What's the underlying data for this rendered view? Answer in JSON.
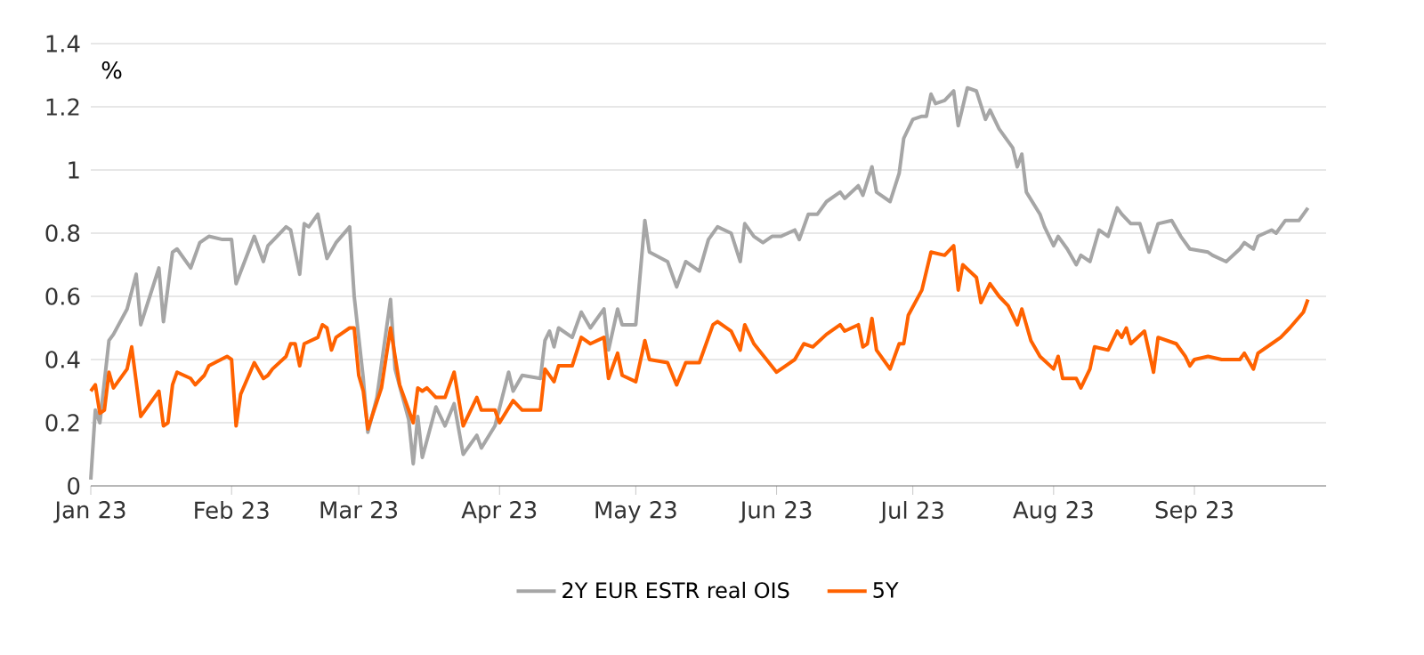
{
  "chart_data": {
    "type": "line",
    "ylabel": "%",
    "ylim": [
      0,
      1.4
    ],
    "yticks": [
      0,
      0.2,
      0.4,
      0.6,
      0.8,
      1,
      1.2,
      1.4
    ],
    "xlim": [
      "2023-01-01",
      "2023-09-30"
    ],
    "xticks": [
      {
        "value": "2023-01-01",
        "label": "Jan 23"
      },
      {
        "value": "2023-02-01",
        "label": "Feb 23"
      },
      {
        "value": "2023-03-01",
        "label": "Mar 23"
      },
      {
        "value": "2023-04-01",
        "label": "Apr 23"
      },
      {
        "value": "2023-05-01",
        "label": "May 23"
      },
      {
        "value": "2023-06-01",
        "label": "Jun 23"
      },
      {
        "value": "2023-07-01",
        "label": "Jul 23"
      },
      {
        "value": "2023-08-01",
        "label": "Aug 23"
      },
      {
        "value": "2023-09-01",
        "label": "Sep 23"
      }
    ],
    "grid": "y",
    "legend": "bottom",
    "marker": "none",
    "line_style": "solid",
    "series": [
      {
        "name": "2Y EUR ESTR real OIS",
        "color": "#a6a6a6",
        "x": [
          "2023-01-01",
          "2023-01-02",
          "2023-01-03",
          "2023-01-05",
          "2023-01-06",
          "2023-01-09",
          "2023-01-11",
          "2023-01-12",
          "2023-01-16",
          "2023-01-17",
          "2023-01-19",
          "2023-01-20",
          "2023-01-23",
          "2023-01-25",
          "2023-01-27",
          "2023-01-30",
          "2023-02-01",
          "2023-02-02",
          "2023-02-06",
          "2023-02-08",
          "2023-02-09",
          "2023-02-11",
          "2023-02-13",
          "2023-02-14",
          "2023-02-16",
          "2023-02-17",
          "2023-02-18",
          "2023-02-20",
          "2023-02-22",
          "2023-02-24",
          "2023-02-27",
          "2023-02-28",
          "2023-03-02",
          "2023-03-03",
          "2023-03-05",
          "2023-03-08",
          "2023-03-09",
          "2023-03-12",
          "2023-03-13",
          "2023-03-14",
          "2023-03-15",
          "2023-03-18",
          "2023-03-20",
          "2023-03-22",
          "2023-03-24",
          "2023-03-27",
          "2023-03-28",
          "2023-03-31",
          "2023-04-03",
          "2023-04-04",
          "2023-04-06",
          "2023-04-10",
          "2023-04-11",
          "2023-04-12",
          "2023-04-13",
          "2023-04-14",
          "2023-04-17",
          "2023-04-19",
          "2023-04-21",
          "2023-04-24",
          "2023-04-25",
          "2023-04-27",
          "2023-04-28",
          "2023-05-01",
          "2023-05-03",
          "2023-05-04",
          "2023-05-08",
          "2023-05-10",
          "2023-05-12",
          "2023-05-15",
          "2023-05-17",
          "2023-05-19",
          "2023-05-22",
          "2023-05-24",
          "2023-05-25",
          "2023-05-27",
          "2023-05-29",
          "2023-05-31",
          "2023-06-02",
          "2023-06-05",
          "2023-06-06",
          "2023-06-08",
          "2023-06-10",
          "2023-06-12",
          "2023-06-14",
          "2023-06-15",
          "2023-06-16",
          "2023-06-19",
          "2023-06-20",
          "2023-06-22",
          "2023-06-23",
          "2023-06-26",
          "2023-06-28",
          "2023-06-29",
          "2023-07-01",
          "2023-07-03",
          "2023-07-04",
          "2023-07-05",
          "2023-07-06",
          "2023-07-08",
          "2023-07-10",
          "2023-07-11",
          "2023-07-13",
          "2023-07-15",
          "2023-07-17",
          "2023-07-18",
          "2023-07-20",
          "2023-07-23",
          "2023-07-24",
          "2023-07-25",
          "2023-07-26",
          "2023-07-29",
          "2023-07-30",
          "2023-08-01",
          "2023-08-02",
          "2023-08-04",
          "2023-08-06",
          "2023-08-07",
          "2023-08-09",
          "2023-08-11",
          "2023-08-13",
          "2023-08-15",
          "2023-08-16",
          "2023-08-18",
          "2023-08-20",
          "2023-08-22",
          "2023-08-24",
          "2023-08-27",
          "2023-08-29",
          "2023-08-31",
          "2023-09-04",
          "2023-09-05",
          "2023-09-08",
          "2023-09-11",
          "2023-09-12",
          "2023-09-14",
          "2023-09-15",
          "2023-09-18",
          "2023-09-19",
          "2023-09-21",
          "2023-09-24",
          "2023-09-26"
        ],
        "values": [
          0.02,
          0.24,
          0.2,
          0.46,
          0.48,
          0.56,
          0.67,
          0.51,
          0.69,
          0.52,
          0.74,
          0.75,
          0.69,
          0.77,
          0.79,
          0.78,
          0.78,
          0.64,
          0.79,
          0.71,
          0.76,
          0.79,
          0.82,
          0.81,
          0.67,
          0.83,
          0.82,
          0.86,
          0.72,
          0.77,
          0.82,
          0.6,
          0.34,
          0.17,
          0.28,
          0.59,
          0.37,
          0.21,
          0.07,
          0.22,
          0.09,
          0.25,
          0.19,
          0.26,
          0.1,
          0.16,
          0.12,
          0.19,
          0.36,
          0.3,
          0.35,
          0.34,
          0.46,
          0.49,
          0.44,
          0.5,
          0.47,
          0.55,
          0.5,
          0.56,
          0.43,
          0.56,
          0.51,
          0.51,
          0.84,
          0.74,
          0.71,
          0.63,
          0.71,
          0.68,
          0.78,
          0.82,
          0.8,
          0.71,
          0.83,
          0.79,
          0.77,
          0.79,
          0.79,
          0.81,
          0.78,
          0.86,
          0.86,
          0.9,
          0.92,
          0.93,
          0.91,
          0.95,
          0.92,
          1.01,
          0.93,
          0.9,
          0.99,
          1.1,
          1.16,
          1.17,
          1.17,
          1.24,
          1.21,
          1.22,
          1.25,
          1.14,
          1.26,
          1.25,
          1.16,
          1.19,
          1.13,
          1.07,
          1.01,
          1.05,
          0.93,
          0.86,
          0.82,
          0.76,
          0.79,
          0.75,
          0.7,
          0.73,
          0.71,
          0.81,
          0.79,
          0.88,
          0.86,
          0.83,
          0.83,
          0.74,
          0.83,
          0.84,
          0.79,
          0.75,
          0.74,
          0.73,
          0.71,
          0.75,
          0.77,
          0.75,
          0.79,
          0.81,
          0.8,
          0.84,
          0.84,
          0.88
        ]
      },
      {
        "name": "5Y",
        "color": "#ff6200",
        "x": [
          "2023-01-01",
          "2023-01-02",
          "2023-01-03",
          "2023-01-04",
          "2023-01-05",
          "2023-01-06",
          "2023-01-09",
          "2023-01-10",
          "2023-01-12",
          "2023-01-16",
          "2023-01-17",
          "2023-01-18",
          "2023-01-19",
          "2023-01-20",
          "2023-01-23",
          "2023-01-24",
          "2023-01-26",
          "2023-01-27",
          "2023-01-31",
          "2023-02-01",
          "2023-02-02",
          "2023-02-03",
          "2023-02-06",
          "2023-02-08",
          "2023-02-09",
          "2023-02-10",
          "2023-02-13",
          "2023-02-14",
          "2023-02-15",
          "2023-02-16",
          "2023-02-17",
          "2023-02-20",
          "2023-02-21",
          "2023-02-22",
          "2023-02-23",
          "2023-02-24",
          "2023-02-27",
          "2023-02-28",
          "2023-03-01",
          "2023-03-02",
          "2023-03-03",
          "2023-03-06",
          "2023-03-08",
          "2023-03-10",
          "2023-03-13",
          "2023-03-14",
          "2023-03-15",
          "2023-03-16",
          "2023-03-18",
          "2023-03-20",
          "2023-03-22",
          "2023-03-24",
          "2023-03-27",
          "2023-03-28",
          "2023-03-31",
          "2023-04-01",
          "2023-04-04",
          "2023-04-06",
          "2023-04-10",
          "2023-04-11",
          "2023-04-13",
          "2023-04-14",
          "2023-04-17",
          "2023-04-19",
          "2023-04-21",
          "2023-04-24",
          "2023-04-25",
          "2023-04-27",
          "2023-04-28",
          "2023-05-01",
          "2023-05-03",
          "2023-05-04",
          "2023-05-08",
          "2023-05-10",
          "2023-05-12",
          "2023-05-15",
          "2023-05-18",
          "2023-05-19",
          "2023-05-22",
          "2023-05-24",
          "2023-05-25",
          "2023-05-27",
          "2023-06-01",
          "2023-06-03",
          "2023-06-05",
          "2023-06-07",
          "2023-06-09",
          "2023-06-12",
          "2023-06-15",
          "2023-06-16",
          "2023-06-19",
          "2023-06-20",
          "2023-06-21",
          "2023-06-22",
          "2023-06-23",
          "2023-06-26",
          "2023-06-28",
          "2023-06-29",
          "2023-06-30",
          "2023-07-03",
          "2023-07-05",
          "2023-07-08",
          "2023-07-10",
          "2023-07-11",
          "2023-07-12",
          "2023-07-15",
          "2023-07-16",
          "2023-07-18",
          "2023-07-20",
          "2023-07-22",
          "2023-07-24",
          "2023-07-25",
          "2023-07-27",
          "2023-07-29",
          "2023-08-01",
          "2023-08-02",
          "2023-08-03",
          "2023-08-06",
          "2023-08-07",
          "2023-08-09",
          "2023-08-10",
          "2023-08-13",
          "2023-08-15",
          "2023-08-16",
          "2023-08-17",
          "2023-08-18",
          "2023-08-21",
          "2023-08-23",
          "2023-08-24",
          "2023-08-28",
          "2023-08-30",
          "2023-08-31",
          "2023-09-01",
          "2023-09-04",
          "2023-09-07",
          "2023-09-11",
          "2023-09-12",
          "2023-09-14",
          "2023-09-15",
          "2023-09-18",
          "2023-09-20",
          "2023-09-22",
          "2023-09-25",
          "2023-09-26"
        ],
        "values": [
          0.3,
          0.32,
          0.23,
          0.24,
          0.36,
          0.31,
          0.37,
          0.44,
          0.22,
          0.3,
          0.19,
          0.2,
          0.32,
          0.36,
          0.34,
          0.32,
          0.35,
          0.38,
          0.41,
          0.4,
          0.19,
          0.29,
          0.39,
          0.34,
          0.35,
          0.37,
          0.41,
          0.45,
          0.45,
          0.38,
          0.45,
          0.47,
          0.51,
          0.5,
          0.43,
          0.47,
          0.5,
          0.5,
          0.35,
          0.3,
          0.18,
          0.31,
          0.5,
          0.32,
          0.2,
          0.31,
          0.3,
          0.31,
          0.28,
          0.28,
          0.36,
          0.19,
          0.28,
          0.24,
          0.24,
          0.2,
          0.27,
          0.24,
          0.24,
          0.37,
          0.33,
          0.38,
          0.38,
          0.47,
          0.45,
          0.47,
          0.34,
          0.42,
          0.35,
          0.33,
          0.46,
          0.4,
          0.39,
          0.32,
          0.39,
          0.39,
          0.51,
          0.52,
          0.49,
          0.43,
          0.51,
          0.45,
          0.36,
          0.38,
          0.4,
          0.45,
          0.44,
          0.48,
          0.51,
          0.49,
          0.51,
          0.44,
          0.45,
          0.53,
          0.43,
          0.37,
          0.45,
          0.45,
          0.54,
          0.62,
          0.74,
          0.73,
          0.76,
          0.62,
          0.7,
          0.66,
          0.58,
          0.64,
          0.6,
          0.57,
          0.51,
          0.56,
          0.46,
          0.41,
          0.37,
          0.41,
          0.34,
          0.34,
          0.31,
          0.37,
          0.44,
          0.43,
          0.49,
          0.47,
          0.5,
          0.45,
          0.49,
          0.36,
          0.47,
          0.45,
          0.41,
          0.38,
          0.4,
          0.41,
          0.4,
          0.4,
          0.42,
          0.37,
          0.42,
          0.45,
          0.47,
          0.5,
          0.55,
          0.59
        ]
      }
    ]
  }
}
